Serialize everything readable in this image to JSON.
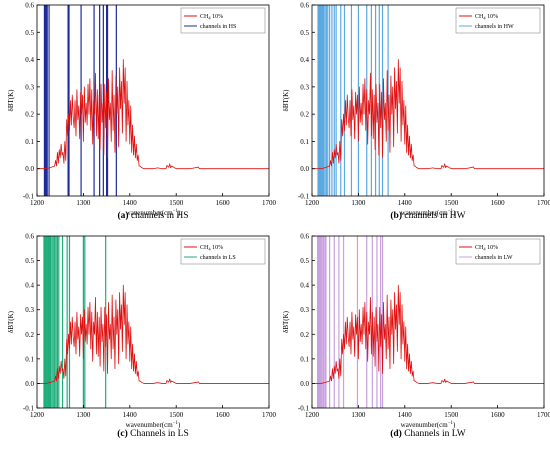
{
  "colors": {
    "spectrum": "#e01010",
    "hs_channels": "#1f2a9a",
    "hw_channels": "#5aa8e0",
    "ls_channels": "#1fae7a",
    "lw_channels": "#c9a0e0",
    "axis": "#000000"
  },
  "chart_data": [
    {
      "type": "line",
      "caption_letter": "(a)",
      "caption_text": " channels in HS",
      "xlabel": "wavenumber(cm",
      "xlabel_sup": "−1",
      "xlabel_end": ")",
      "ylabel": "δBT(K)",
      "xlim": [
        1200,
        1700
      ],
      "ylim": [
        -0.1,
        0.6
      ],
      "xticks": [
        1200,
        1300,
        1400,
        1500,
        1600,
        1700
      ],
      "yticks": [
        -0.1,
        0.0,
        0.1,
        0.2,
        0.3,
        0.4,
        0.5,
        0.6
      ],
      "ytick_labels": [
        "-0.1",
        "0.0",
        "0.1",
        "0.2",
        "0.3",
        "0.4",
        "0.5",
        "0.6"
      ],
      "legend_placement": "top-right",
      "series": [
        {
          "name": "CH",
          "name_sub": "4",
          "name_rest": " 10%",
          "color_key": "spectrum"
        },
        {
          "name": "channels in HS",
          "color_key": "hs_channels"
        }
      ],
      "channels": [
        1216,
        1217,
        1219,
        1220,
        1221,
        1222,
        1226,
        1267,
        1269,
        1295,
        1323,
        1335,
        1343,
        1350,
        1352,
        1371
      ],
      "channel_color_key": "hs_channels"
    },
    {
      "type": "line",
      "caption_letter": "(b)",
      "caption_text": " channels in HW",
      "xlabel": "wavenumber(cm",
      "xlabel_sup": "−1",
      "xlabel_end": ")",
      "ylabel": "δBT(K)",
      "xlim": [
        1200,
        1700
      ],
      "ylim": [
        -0.1,
        0.6
      ],
      "xticks": [
        1200,
        1300,
        1400,
        1500,
        1600,
        1700
      ],
      "yticks": [
        -0.1,
        0.0,
        0.1,
        0.2,
        0.3,
        0.4,
        0.5,
        0.6
      ],
      "ytick_labels": [
        "-0.1",
        "0.0",
        "0.1",
        "0.2",
        "0.3",
        "0.4",
        "0.5",
        "0.6"
      ],
      "legend_placement": "top-right",
      "series": [
        {
          "name": "CH",
          "name_sub": "4",
          "name_rest": " 10%",
          "color_key": "spectrum"
        },
        {
          "name": "channels in HW",
          "color_key": "hw_channels"
        }
      ],
      "channels": [
        1213,
        1215,
        1217,
        1219,
        1221,
        1223,
        1225,
        1228,
        1231,
        1234,
        1238,
        1243,
        1248,
        1252,
        1262,
        1270,
        1285,
        1300,
        1318,
        1328,
        1337,
        1345,
        1352,
        1364
      ],
      "channel_color_key": "hw_channels"
    },
    {
      "type": "line",
      "caption_letter": "(c)",
      "caption_text": " Channels in LS",
      "xlabel": "wavenumber(cm",
      "xlabel_sup": "−1",
      "xlabel_end": ")",
      "ylabel": "δBT(K)",
      "xlim": [
        1200,
        1700
      ],
      "ylim": [
        -0.1,
        0.6
      ],
      "xticks": [
        1200,
        1300,
        1400,
        1500,
        1600,
        1700
      ],
      "yticks": [
        -0.1,
        0.0,
        0.1,
        0.2,
        0.3,
        0.4,
        0.5,
        0.6
      ],
      "ytick_labels": [
        "-0.1",
        "0.0",
        "0.1",
        "0.2",
        "0.3",
        "0.4",
        "0.5",
        "0.6"
      ],
      "legend_placement": "top-right",
      "series": [
        {
          "name": "CH",
          "name_sub": "4",
          "name_rest": " 10%",
          "color_key": "spectrum"
        },
        {
          "name": "channels in LS",
          "color_key": "ls_channels"
        }
      ],
      "channels": [
        1215,
        1217,
        1219,
        1221,
        1223,
        1225,
        1227,
        1229,
        1232,
        1235,
        1238,
        1241,
        1244,
        1247,
        1255,
        1265,
        1270,
        1300,
        1303,
        1348
      ],
      "channel_color_key": "ls_channels"
    },
    {
      "type": "line",
      "caption_letter": "(d)",
      "caption_text": " Channels in LW",
      "xlabel": "wavenumber(cm",
      "xlabel_sup": "−1",
      "xlabel_end": ")",
      "ylabel": "δBT(K)",
      "xlim": [
        1200,
        1700
      ],
      "ylim": [
        -0.1,
        0.6
      ],
      "xticks": [
        1200,
        1300,
        1400,
        1500,
        1600,
        1700
      ],
      "yticks": [
        -0.1,
        0.0,
        0.1,
        0.2,
        0.3,
        0.4,
        0.5,
        0.6
      ],
      "ytick_labels": [
        "-0.1",
        "0.0",
        "0.1",
        "0.2",
        "0.3",
        "0.4",
        "0.5",
        "0.6"
      ],
      "legend_placement": "top-right",
      "series": [
        {
          "name": "CH",
          "name_sub": "4",
          "name_rest": " 10%",
          "color_key": "spectrum"
        },
        {
          "name": "channels in LW",
          "color_key": "lw_channels"
        }
      ],
      "channels": [
        1212,
        1214,
        1216,
        1218,
        1220,
        1222,
        1225,
        1228,
        1230,
        1238,
        1248,
        1258,
        1268,
        1298,
        1318,
        1330,
        1340,
        1348,
        1352
      ],
      "channel_color_key": "lw_channels"
    }
  ],
  "spectrum": {
    "x": [
      1200,
      1220,
      1230,
      1238,
      1240,
      1242,
      1244,
      1246,
      1248,
      1250,
      1252,
      1254,
      1256,
      1258,
      1260,
      1262,
      1264,
      1266,
      1268,
      1270,
      1272,
      1274,
      1276,
      1278,
      1280,
      1282,
      1284,
      1286,
      1288,
      1290,
      1292,
      1294,
      1296,
      1298,
      1300,
      1302,
      1304,
      1306,
      1308,
      1310,
      1312,
      1314,
      1316,
      1318,
      1320,
      1322,
      1324,
      1326,
      1328,
      1330,
      1332,
      1334,
      1336,
      1338,
      1340,
      1342,
      1344,
      1346,
      1348,
      1350,
      1352,
      1354,
      1356,
      1358,
      1360,
      1362,
      1364,
      1366,
      1368,
      1370,
      1372,
      1374,
      1376,
      1378,
      1380,
      1382,
      1384,
      1386,
      1388,
      1390,
      1392,
      1394,
      1396,
      1398,
      1400,
      1402,
      1404,
      1406,
      1408,
      1410,
      1412,
      1414,
      1416,
      1418,
      1420,
      1422,
      1425,
      1430,
      1440,
      1450,
      1460,
      1470,
      1478,
      1480,
      1484,
      1486,
      1488,
      1490,
      1500,
      1510,
      1530,
      1548,
      1550,
      1560,
      1580,
      1600,
      1620,
      1640,
      1660,
      1680,
      1700
    ],
    "y": [
      0.0,
      0.0,
      0.005,
      0.01,
      0.03,
      0.01,
      0.06,
      0.02,
      0.07,
      0.04,
      0.09,
      0.05,
      0.06,
      0.02,
      0.1,
      0.03,
      0.18,
      0.12,
      0.2,
      0.14,
      0.25,
      0.16,
      0.27,
      0.19,
      0.15,
      0.25,
      0.12,
      0.29,
      0.18,
      0.23,
      0.11,
      0.28,
      0.2,
      0.27,
      0.1,
      0.3,
      0.17,
      0.24,
      0.16,
      0.31,
      0.2,
      0.33,
      0.14,
      0.29,
      0.09,
      0.25,
      0.2,
      0.35,
      0.12,
      0.29,
      0.11,
      0.27,
      0.07,
      0.31,
      0.17,
      0.24,
      0.05,
      0.31,
      0.15,
      0.28,
      0.04,
      0.33,
      0.18,
      0.24,
      0.1,
      0.36,
      0.14,
      0.27,
      0.06,
      0.34,
      0.2,
      0.3,
      0.08,
      0.37,
      0.22,
      0.32,
      0.13,
      0.4,
      0.24,
      0.37,
      0.1,
      0.32,
      0.16,
      0.25,
      0.09,
      0.23,
      0.06,
      0.16,
      0.05,
      0.12,
      0.04,
      0.09,
      0.03,
      0.05,
      0.01,
      0.01,
      0.005,
      0.0,
      0.0,
      0.0,
      0.003,
      0.0,
      0.0,
      0.012,
      0.005,
      0.018,
      0.004,
      0.01,
      0.0,
      0.0,
      0.0,
      0.006,
      0.0,
      0.0,
      0.0,
      0.0,
      0.0,
      0.0,
      0.0,
      0.0,
      0.0
    ]
  }
}
